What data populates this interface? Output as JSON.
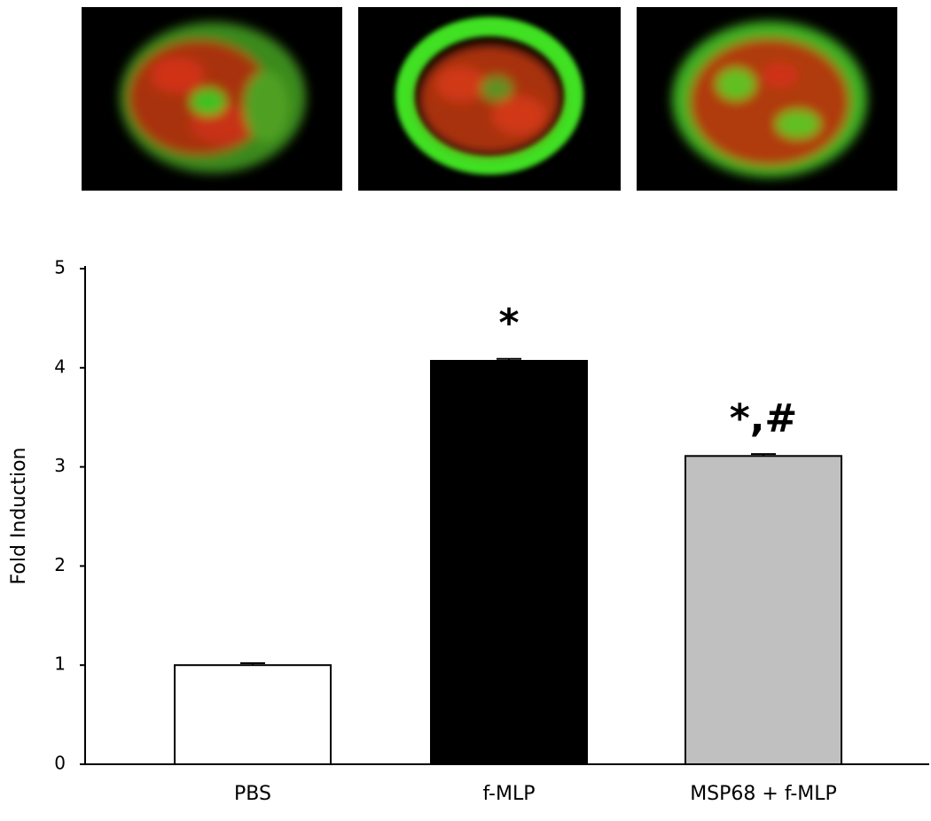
{
  "chart_data": {
    "type": "bar",
    "y_label": "Fold Induction",
    "categories": [
      "PBS",
      "f-MLP",
      "MSP68 + f-MLP"
    ],
    "values": [
      1.0,
      4.07,
      3.11
    ],
    "errors": [
      0.02,
      0.02,
      0.02
    ],
    "bar_labels": [
      null,
      "*",
      "*,#"
    ],
    "colors": [
      "#ffffff",
      "#000000",
      "#c0c0c0"
    ],
    "ylim": [
      0,
      5
    ],
    "yticks": [
      0,
      1,
      2,
      3,
      4,
      5
    ],
    "grid": false
  }
}
